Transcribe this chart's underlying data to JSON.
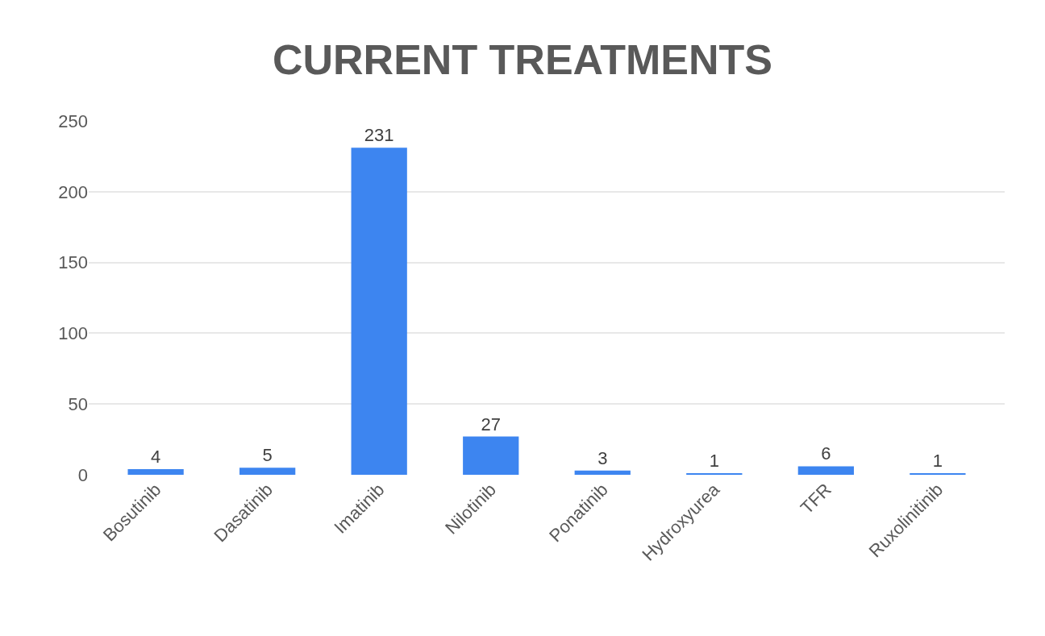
{
  "chart_data": {
    "type": "bar",
    "title": "CURRENT TREATMENTS",
    "categories": [
      "Bosutinib",
      "Dasatinib",
      "Imatinib",
      "Nilotinib",
      "Ponatinib",
      "Hydroxyurea",
      "TFR",
      "Ruxolinitinib"
    ],
    "values": [
      4,
      5,
      231,
      27,
      3,
      1,
      6,
      1
    ],
    "color": "#3d85f0",
    "ylim": [
      0,
      250
    ],
    "yticks": [
      0,
      50,
      100,
      150,
      200,
      250
    ],
    "grid": "y",
    "data_labels": true
  }
}
